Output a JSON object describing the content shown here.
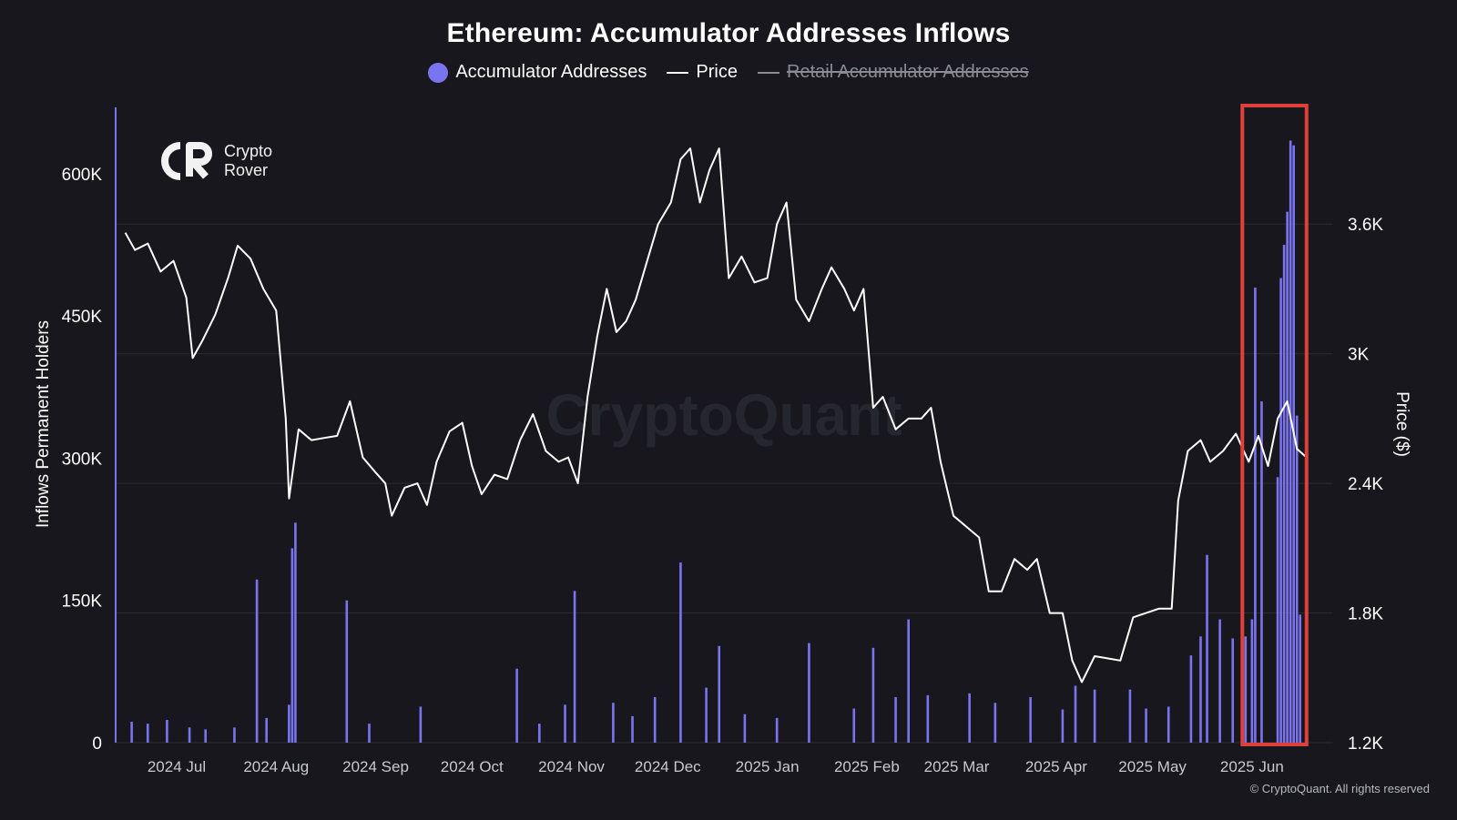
{
  "chart_data": {
    "type": "bar+line",
    "title": "Ethereum: Accumulator Addresses Inflows",
    "legend": [
      {
        "name": "Accumulator Addresses",
        "color": "#7b74f0",
        "marker": "dot",
        "enabled": true
      },
      {
        "name": "Price",
        "color": "#ffffff",
        "marker": "line",
        "enabled": true
      },
      {
        "name": "Retail Accumulator Addresses",
        "color": "#8a8a92",
        "marker": "line",
        "enabled": false
      }
    ],
    "ylabel_left": "Inflows Permanent Holders",
    "ylabel_right": "Price ($)",
    "yticks_left": [
      {
        "value": 0,
        "label": "0"
      },
      {
        "value": 150000,
        "label": "150K"
      },
      {
        "value": 300000,
        "label": "300K"
      },
      {
        "value": 450000,
        "label": "450K"
      },
      {
        "value": 600000,
        "label": "600K"
      }
    ],
    "yticks_right": [
      {
        "value": 1200,
        "label": "1.2K"
      },
      {
        "value": 1800,
        "label": "1.8K"
      },
      {
        "value": 2400,
        "label": "2.4K"
      },
      {
        "value": 3000,
        "label": "3K"
      },
      {
        "value": 3600,
        "label": "3.6K"
      }
    ],
    "ylim_left": [
      0,
      670000
    ],
    "ylim_right": [
      1200,
      4140
    ],
    "xrange": [
      "2024-06-12",
      "2025-06-26"
    ],
    "xticks": [
      {
        "date": "2024-07-01",
        "label": "2024 Jul"
      },
      {
        "date": "2024-08-01",
        "label": "2024 Aug"
      },
      {
        "date": "2024-09-01",
        "label": "2024 Sep"
      },
      {
        "date": "2024-10-01",
        "label": "2024 Oct"
      },
      {
        "date": "2024-11-01",
        "label": "2024 Nov"
      },
      {
        "date": "2024-12-01",
        "label": "2024 Dec"
      },
      {
        "date": "2025-01-01",
        "label": "2025 Jan"
      },
      {
        "date": "2025-02-01",
        "label": "2025 Feb"
      },
      {
        "date": "2025-03-01",
        "label": "2025 Mar"
      },
      {
        "date": "2025-04-01",
        "label": "2025 Apr"
      },
      {
        "date": "2025-05-01",
        "label": "2025 May"
      },
      {
        "date": "2025-06-01",
        "label": "2025 Jun"
      }
    ],
    "grid": true,
    "highlight": {
      "from": "2025-05-29",
      "to": "2025-06-18",
      "color": "#e0403a"
    },
    "price_series": {
      "name": "Price",
      "points": [
        [
          "2024-06-15",
          3560
        ],
        [
          "2024-06-18",
          3480
        ],
        [
          "2024-06-22",
          3510
        ],
        [
          "2024-06-26",
          3380
        ],
        [
          "2024-06-30",
          3430
        ],
        [
          "2024-07-04",
          3260
        ],
        [
          "2024-07-06",
          2980
        ],
        [
          "2024-07-09",
          3060
        ],
        [
          "2024-07-13",
          3180
        ],
        [
          "2024-07-17",
          3350
        ],
        [
          "2024-07-20",
          3500
        ],
        [
          "2024-07-24",
          3440
        ],
        [
          "2024-07-28",
          3300
        ],
        [
          "2024-08-01",
          3200
        ],
        [
          "2024-08-04",
          2700
        ],
        [
          "2024-08-05",
          2330
        ],
        [
          "2024-08-08",
          2650
        ],
        [
          "2024-08-12",
          2600
        ],
        [
          "2024-08-16",
          2610
        ],
        [
          "2024-08-20",
          2620
        ],
        [
          "2024-08-24",
          2780
        ],
        [
          "2024-08-28",
          2520
        ],
        [
          "2024-09-01",
          2450
        ],
        [
          "2024-09-04",
          2400
        ],
        [
          "2024-09-06",
          2250
        ],
        [
          "2024-09-10",
          2380
        ],
        [
          "2024-09-14",
          2400
        ],
        [
          "2024-09-17",
          2300
        ],
        [
          "2024-09-20",
          2500
        ],
        [
          "2024-09-24",
          2640
        ],
        [
          "2024-09-28",
          2680
        ],
        [
          "2024-10-01",
          2480
        ],
        [
          "2024-10-04",
          2350
        ],
        [
          "2024-10-08",
          2440
        ],
        [
          "2024-10-12",
          2420
        ],
        [
          "2024-10-16",
          2600
        ],
        [
          "2024-10-20",
          2720
        ],
        [
          "2024-10-24",
          2550
        ],
        [
          "2024-10-28",
          2500
        ],
        [
          "2024-10-31",
          2520
        ],
        [
          "2024-11-03",
          2400
        ],
        [
          "2024-11-06",
          2800
        ],
        [
          "2024-11-09",
          3080
        ],
        [
          "2024-11-12",
          3300
        ],
        [
          "2024-11-15",
          3100
        ],
        [
          "2024-11-18",
          3150
        ],
        [
          "2024-11-21",
          3250
        ],
        [
          "2024-11-24",
          3400
        ],
        [
          "2024-11-28",
          3600
        ],
        [
          "2024-12-02",
          3700
        ],
        [
          "2024-12-05",
          3900
        ],
        [
          "2024-12-08",
          3950
        ],
        [
          "2024-12-11",
          3700
        ],
        [
          "2024-12-14",
          3850
        ],
        [
          "2024-12-17",
          3950
        ],
        [
          "2024-12-20",
          3350
        ],
        [
          "2024-12-24",
          3450
        ],
        [
          "2024-12-28",
          3330
        ],
        [
          "2025-01-01",
          3350
        ],
        [
          "2025-01-04",
          3600
        ],
        [
          "2025-01-07",
          3700
        ],
        [
          "2025-01-10",
          3250
        ],
        [
          "2025-01-14",
          3150
        ],
        [
          "2025-01-18",
          3300
        ],
        [
          "2025-01-21",
          3400
        ],
        [
          "2025-01-25",
          3300
        ],
        [
          "2025-01-28",
          3200
        ],
        [
          "2025-01-31",
          3300
        ],
        [
          "2025-02-03",
          2750
        ],
        [
          "2025-02-06",
          2800
        ],
        [
          "2025-02-10",
          2650
        ],
        [
          "2025-02-14",
          2700
        ],
        [
          "2025-02-18",
          2700
        ],
        [
          "2025-02-21",
          2750
        ],
        [
          "2025-02-24",
          2500
        ],
        [
          "2025-02-28",
          2250
        ],
        [
          "2025-03-04",
          2200
        ],
        [
          "2025-03-08",
          2150
        ],
        [
          "2025-03-11",
          1900
        ],
        [
          "2025-03-15",
          1900
        ],
        [
          "2025-03-19",
          2050
        ],
        [
          "2025-03-23",
          2000
        ],
        [
          "2025-03-26",
          2050
        ],
        [
          "2025-03-30",
          1800
        ],
        [
          "2025-04-03",
          1800
        ],
        [
          "2025-04-06",
          1580
        ],
        [
          "2025-04-09",
          1480
        ],
        [
          "2025-04-13",
          1600
        ],
        [
          "2025-04-17",
          1590
        ],
        [
          "2025-04-21",
          1580
        ],
        [
          "2025-04-25",
          1780
        ],
        [
          "2025-04-29",
          1800
        ],
        [
          "2025-05-03",
          1820
        ],
        [
          "2025-05-07",
          1820
        ],
        [
          "2025-05-09",
          2320
        ],
        [
          "2025-05-12",
          2550
        ],
        [
          "2025-05-16",
          2600
        ],
        [
          "2025-05-19",
          2500
        ],
        [
          "2025-05-23",
          2550
        ],
        [
          "2025-05-27",
          2630
        ],
        [
          "2025-05-31",
          2500
        ],
        [
          "2025-06-03",
          2620
        ],
        [
          "2025-06-06",
          2480
        ],
        [
          "2025-06-09",
          2700
        ],
        [
          "2025-06-12",
          2780
        ],
        [
          "2025-06-15",
          2560
        ],
        [
          "2025-06-18",
          2520
        ]
      ]
    },
    "bars_series": {
      "name": "Accumulator Addresses",
      "points": [
        [
          "2024-06-17",
          22000
        ],
        [
          "2024-06-22",
          20000
        ],
        [
          "2024-06-28",
          24000
        ],
        [
          "2024-07-05",
          16000
        ],
        [
          "2024-07-10",
          14000
        ],
        [
          "2024-07-19",
          16000
        ],
        [
          "2024-07-26",
          172000
        ],
        [
          "2024-07-29",
          26000
        ],
        [
          "2024-08-05",
          40000
        ],
        [
          "2024-08-06",
          205000
        ],
        [
          "2024-08-07",
          232000
        ],
        [
          "2024-08-23",
          150000
        ],
        [
          "2024-08-30",
          20000
        ],
        [
          "2024-09-15",
          38000
        ],
        [
          "2024-10-15",
          78000
        ],
        [
          "2024-10-22",
          20000
        ],
        [
          "2024-10-30",
          40000
        ],
        [
          "2024-11-02",
          160000
        ],
        [
          "2024-11-14",
          42000
        ],
        [
          "2024-11-20",
          28000
        ],
        [
          "2024-11-27",
          48000
        ],
        [
          "2024-12-05",
          190000
        ],
        [
          "2024-12-13",
          58000
        ],
        [
          "2024-12-17",
          102000
        ],
        [
          "2024-12-25",
          30000
        ],
        [
          "2025-01-04",
          26000
        ],
        [
          "2025-01-14",
          105000
        ],
        [
          "2025-01-28",
          36000
        ],
        [
          "2025-02-03",
          100000
        ],
        [
          "2025-02-10",
          48000
        ],
        [
          "2025-02-14",
          130000
        ],
        [
          "2025-02-20",
          50000
        ],
        [
          "2025-03-05",
          52000
        ],
        [
          "2025-03-13",
          42000
        ],
        [
          "2025-03-24",
          48000
        ],
        [
          "2025-04-03",
          35000
        ],
        [
          "2025-04-07",
          60000
        ],
        [
          "2025-04-13",
          56000
        ],
        [
          "2025-04-24",
          56000
        ],
        [
          "2025-04-29",
          36000
        ],
        [
          "2025-05-06",
          38000
        ],
        [
          "2025-05-13",
          92000
        ],
        [
          "2025-05-16",
          112000
        ],
        [
          "2025-05-18",
          198000
        ],
        [
          "2025-05-22",
          130000
        ],
        [
          "2025-05-26",
          110000
        ],
        [
          "2025-05-30",
          112000
        ],
        [
          "2025-06-01",
          130000
        ],
        [
          "2025-06-02",
          480000
        ],
        [
          "2025-06-04",
          360000
        ],
        [
          "2025-06-09",
          280000
        ],
        [
          "2025-06-10",
          490000
        ],
        [
          "2025-06-11",
          525000
        ],
        [
          "2025-06-12",
          560000
        ],
        [
          "2025-06-13",
          635000
        ],
        [
          "2025-06-14",
          630000
        ],
        [
          "2025-06-15",
          345000
        ],
        [
          "2025-06-16",
          135000
        ]
      ]
    }
  },
  "watermark": "CryptoQuant",
  "brand": {
    "line1": "Crypto",
    "line2": "Rover"
  },
  "copyright": "© CryptoQuant. All rights reserved"
}
